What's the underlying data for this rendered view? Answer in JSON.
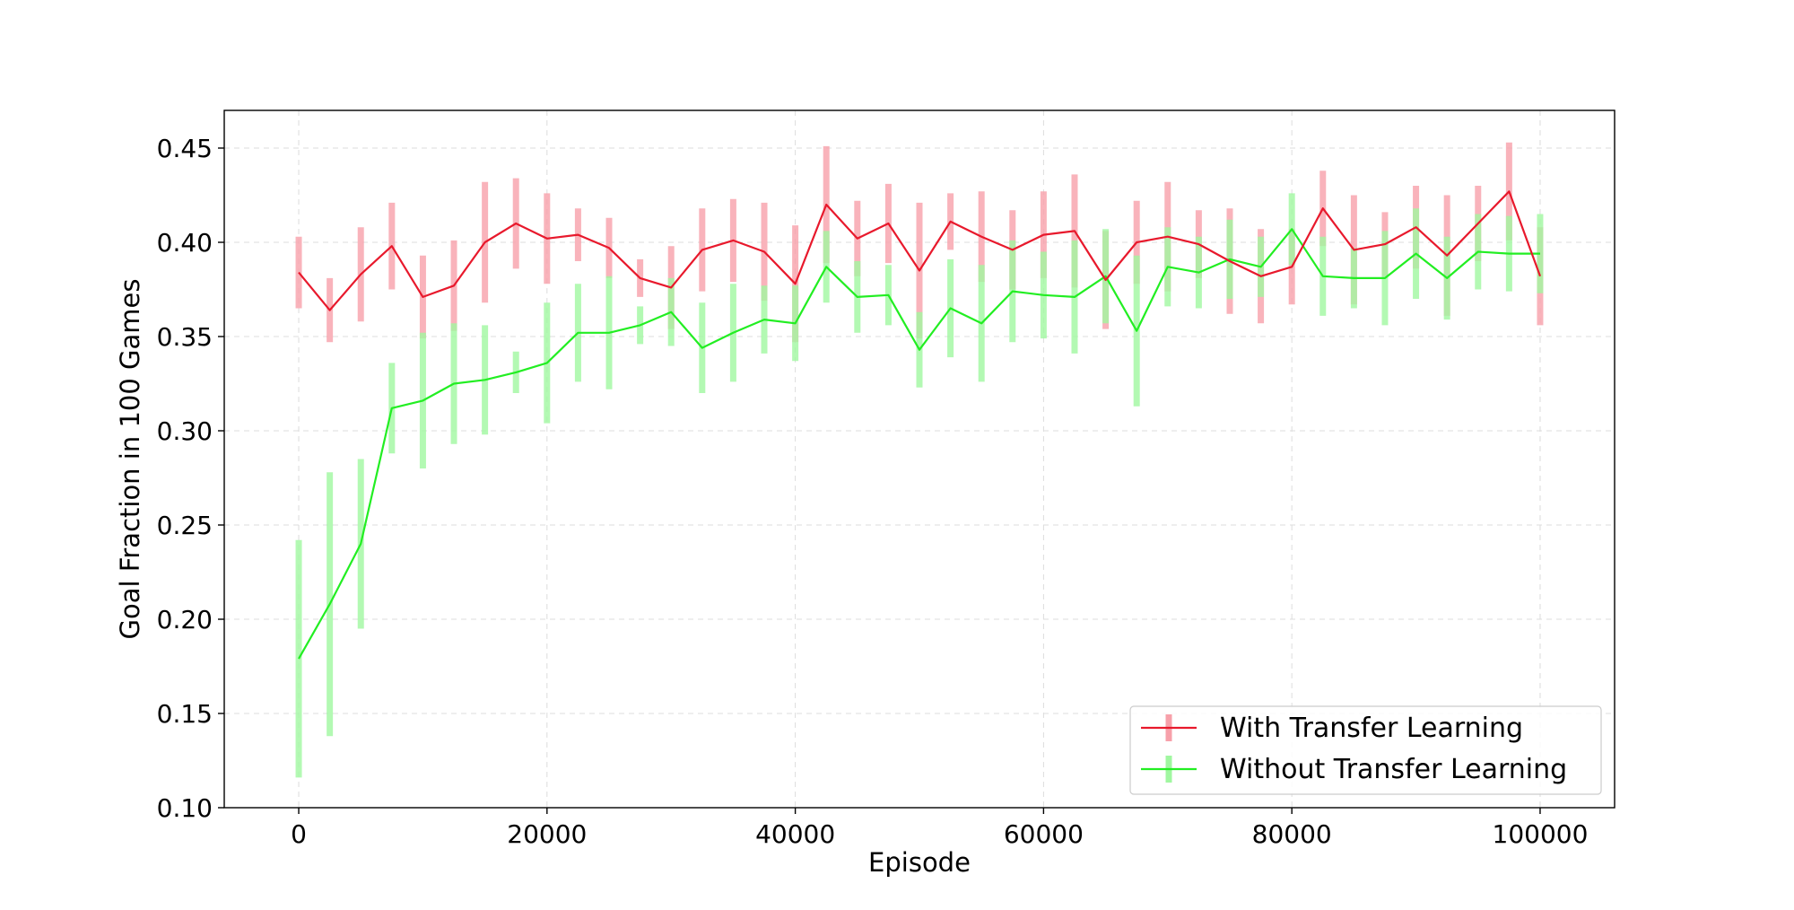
{
  "chart_data": {
    "type": "line",
    "xlabel": "Episode",
    "ylabel": "Goal Fraction in 100 Games",
    "xlim": [
      -6000,
      106000
    ],
    "ylim": [
      0.1,
      0.47
    ],
    "xticks": [
      0,
      20000,
      40000,
      60000,
      80000,
      100000
    ],
    "xtick_labels": [
      "0",
      "20000",
      "40000",
      "60000",
      "80000",
      "100000"
    ],
    "yticks": [
      0.1,
      0.15,
      0.2,
      0.25,
      0.3,
      0.35,
      0.4,
      0.45
    ],
    "ytick_labels": [
      "0.10",
      "0.15",
      "0.20",
      "0.25",
      "0.30",
      "0.35",
      "0.40",
      "0.45"
    ],
    "grid": true,
    "legend_position": "bottom-right",
    "x": [
      0,
      2500,
      5000,
      7500,
      10000,
      12500,
      15000,
      17500,
      20000,
      22500,
      25000,
      27500,
      30000,
      32500,
      35000,
      37500,
      40000,
      42500,
      45000,
      47500,
      50000,
      52500,
      55000,
      57500,
      60000,
      62500,
      65000,
      67500,
      70000,
      72500,
      75000,
      77500,
      80000,
      82500,
      85000,
      87500,
      90000,
      92500,
      95000,
      97500,
      100000
    ],
    "series": [
      {
        "name": "With Transfer Learning",
        "color": "#e8192c",
        "error_color": "#f7a0aa",
        "values": [
          0.384,
          0.364,
          0.383,
          0.398,
          0.371,
          0.377,
          0.4,
          0.41,
          0.402,
          0.404,
          0.397,
          0.381,
          0.376,
          0.396,
          0.401,
          0.395,
          0.378,
          0.42,
          0.402,
          0.41,
          0.385,
          0.411,
          0.403,
          0.396,
          0.404,
          0.406,
          0.38,
          0.4,
          0.403,
          0.399,
          0.39,
          0.382,
          0.387,
          0.418,
          0.396,
          0.399,
          0.408,
          0.393,
          0.41,
          0.427,
          0.382
        ],
        "errors": [
          0.019,
          0.017,
          0.025,
          0.023,
          0.022,
          0.024,
          0.032,
          0.024,
          0.024,
          0.014,
          0.016,
          0.01,
          0.022,
          0.022,
          0.022,
          0.026,
          0.031,
          0.031,
          0.02,
          0.021,
          0.036,
          0.015,
          0.024,
          0.021,
          0.023,
          0.03,
          0.026,
          0.022,
          0.029,
          0.018,
          0.028,
          0.025,
          0.02,
          0.02,
          0.029,
          0.017,
          0.022,
          0.032,
          0.02,
          0.026,
          0.026
        ]
      },
      {
        "name": "Without Transfer Learning",
        "color": "#22ee22",
        "error_color": "#a0f7a0",
        "values": [
          0.179,
          0.208,
          0.24,
          0.312,
          0.316,
          0.325,
          0.327,
          0.331,
          0.336,
          0.352,
          0.352,
          0.356,
          0.363,
          0.344,
          0.352,
          0.359,
          0.357,
          0.387,
          0.371,
          0.372,
          0.343,
          0.365,
          0.357,
          0.374,
          0.372,
          0.371,
          0.382,
          0.353,
          0.387,
          0.384,
          0.391,
          0.387,
          0.407,
          0.382,
          0.381,
          0.381,
          0.394,
          0.381,
          0.395,
          0.394,
          0.394
        ],
        "errors": [
          0.063,
          0.07,
          0.045,
          0.024,
          0.036,
          0.032,
          0.029,
          0.011,
          0.032,
          0.026,
          0.03,
          0.01,
          0.018,
          0.024,
          0.026,
          0.018,
          0.02,
          0.019,
          0.019,
          0.016,
          0.02,
          0.026,
          0.031,
          0.027,
          0.023,
          0.03,
          0.025,
          0.04,
          0.021,
          0.019,
          0.021,
          0.016,
          0.019,
          0.021,
          0.016,
          0.025,
          0.024,
          0.022,
          0.02,
          0.02,
          0.021
        ]
      }
    ]
  }
}
